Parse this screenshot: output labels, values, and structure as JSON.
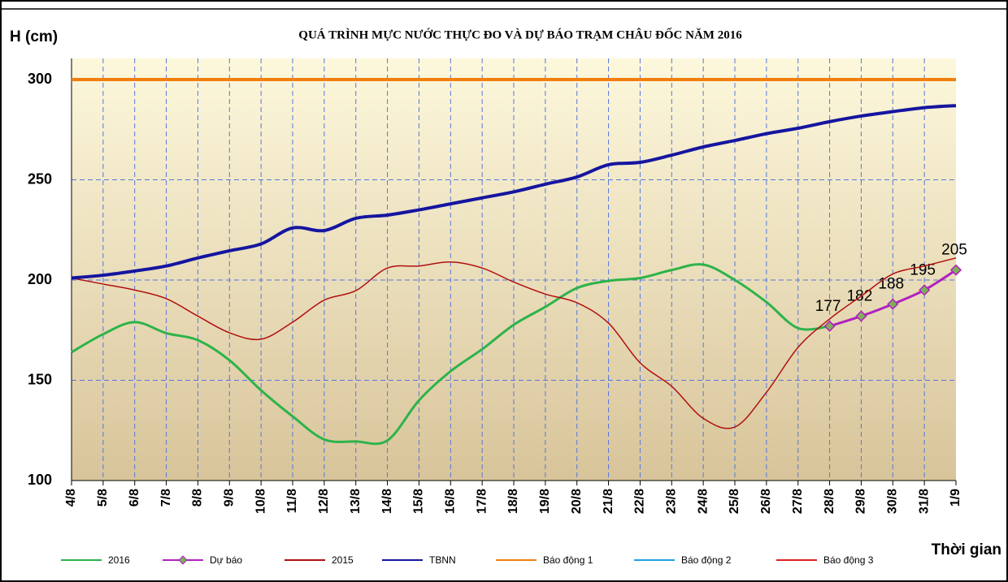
{
  "chart_data": {
    "type": "line",
    "title": "QUÁ TRÌNH MỰC NƯỚC THỰC ĐO VÀ DỰ BÁO TRẠM CHÂU ĐỐC NĂM 2016",
    "y_label": "H (cm)",
    "x_label": "Thời gian",
    "categories": [
      "4/8",
      "5/8",
      "6/8",
      "7/8",
      "8/8",
      "9/8",
      "10/8",
      "11/8",
      "12/8",
      "13/8",
      "14/8",
      "15/8",
      "16/8",
      "17/8",
      "18/8",
      "19/8",
      "20/8",
      "21/8",
      "22/8",
      "23/8",
      "24/8",
      "25/8",
      "26/8",
      "27/8",
      "28/8",
      "29/8",
      "30/8",
      "31/8",
      "1/9"
    ],
    "ylim": [
      100,
      300
    ],
    "yticks": [
      100,
      150,
      200,
      250,
      300
    ],
    "grid": true,
    "series": [
      {
        "name": "2016",
        "color": "#2db34a",
        "values": [
          164,
          173,
          179,
          173.5,
          170,
          160,
          145,
          132,
          120.5,
          119.5,
          120,
          140,
          154.5,
          165.5,
          177.7,
          186.6,
          196,
          199.6,
          201,
          205,
          207.7,
          200,
          189,
          176,
          177,
          null,
          null,
          null,
          null
        ]
      },
      {
        "name": "Dự báo",
        "color": "#b020c0",
        "marker": "diamond",
        "values": [
          null,
          null,
          null,
          null,
          null,
          null,
          null,
          null,
          null,
          null,
          null,
          null,
          null,
          null,
          null,
          null,
          null,
          null,
          null,
          null,
          null,
          null,
          null,
          null,
          177,
          182,
          188,
          195,
          205
        ],
        "show_values": true
      },
      {
        "name": "2015",
        "color": "#b01010",
        "values": [
          201,
          198,
          195,
          190.7,
          182,
          173.7,
          170.5,
          179,
          190,
          194.7,
          206,
          207,
          209,
          206,
          199,
          193,
          188.7,
          178.5,
          158.7,
          147,
          131,
          126.7,
          144,
          166.4,
          180.6,
          192,
          203,
          207,
          211
        ]
      },
      {
        "name": "TBNN",
        "color": "#1515a0",
        "values": [
          201,
          202.4,
          204.5,
          207,
          211,
          214.6,
          218,
          226,
          224.7,
          230.8,
          232.4,
          235,
          238,
          241,
          244,
          247.8,
          251.4,
          257.5,
          258.7,
          262.3,
          266.4,
          269.6,
          273,
          275.7,
          279,
          281.8,
          284,
          286,
          287
        ]
      },
      {
        "name": "Báo động 1",
        "color": "#f07f10",
        "values": [
          300,
          300,
          300,
          300,
          300,
          300,
          300,
          300,
          300,
          300,
          300,
          300,
          300,
          300,
          300,
          300,
          300,
          300,
          300,
          300,
          300,
          300,
          300,
          300,
          300,
          300,
          300,
          300,
          300
        ]
      },
      {
        "name": "Báo động 2",
        "color": "#20a0e0",
        "values": [
          null,
          null,
          null,
          null,
          null,
          null,
          null,
          null,
          null,
          null,
          null,
          null,
          null,
          null,
          null,
          null,
          null,
          null,
          null,
          null,
          null,
          null,
          null,
          null,
          null,
          null,
          null,
          null,
          null
        ]
      },
      {
        "name": "Báo động 3",
        "color": "#e02020",
        "values": [
          null,
          null,
          null,
          null,
          null,
          null,
          null,
          null,
          null,
          null,
          null,
          null,
          null,
          null,
          null,
          null,
          null,
          null,
          null,
          null,
          null,
          null,
          null,
          null,
          null,
          null,
          null,
          null,
          null
        ]
      }
    ]
  }
}
